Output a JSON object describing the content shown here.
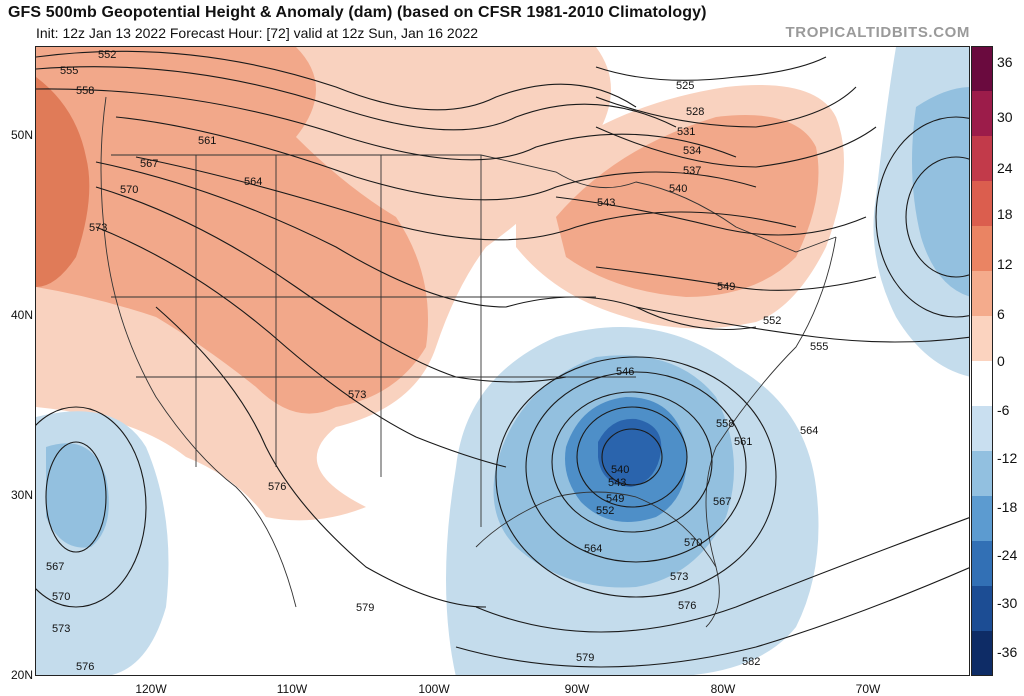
{
  "header": {
    "title": "GFS 500mb Geopotential Height & Anomaly (dam) (based on CFSR 1981-2010 Climatology)",
    "subtitle": "Init: 12z Jan 13 2022   Forecast Hour: [72]   valid at 12z Sun, Jan 16 2022",
    "brand": "TROPICALTIDBITS.COM"
  },
  "colors": {
    "strong_warm": "#e07b58",
    "warm": "#f2a88a",
    "light_warm": "#f9d2bf",
    "light_cool": "#c4dcec",
    "cool": "#93c0df",
    "deep_cool": "#4e8fc8",
    "deepest_cool": "#2a64ad",
    "contour": "#1a1a1a",
    "border": "#333333"
  },
  "colorbar": {
    "labels": [
      "36",
      "30",
      "24",
      "18",
      "12",
      "6",
      "0",
      "-6",
      "-12",
      "-18",
      "-24",
      "-30",
      "-36"
    ],
    "colors": [
      "#6a0a3e",
      "#9c1c4a",
      "#c23a4a",
      "#db5e4e",
      "#ea8463",
      "#f4ab8c",
      "#fbd3bf",
      "#ffffff",
      "#c9dff0",
      "#92c0e0",
      "#5c9bd0",
      "#3270b5",
      "#1c4d94",
      "#0e2c66"
    ]
  },
  "axes": {
    "lat_labels": [
      "50N",
      "40N",
      "30N",
      "20N"
    ],
    "lon_labels": [
      "120W",
      "110W",
      "100W",
      "90W",
      "80W",
      "70W"
    ]
  },
  "contour_labels": [
    "552",
    "555",
    "558",
    "561",
    "567",
    "564",
    "570",
    "573",
    "576",
    "579",
    "567",
    "570",
    "573",
    "576",
    "525",
    "528",
    "531",
    "534",
    "537",
    "540",
    "543",
    "549",
    "552",
    "555",
    "546",
    "558",
    "561",
    "564",
    "540",
    "543",
    "549",
    "552",
    "567",
    "564",
    "570",
    "573",
    "576",
    "579",
    "582",
    "573"
  ]
}
